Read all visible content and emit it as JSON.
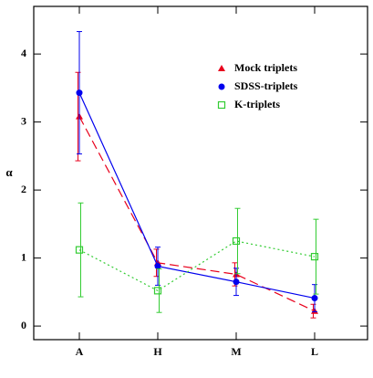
{
  "chart_data": {
    "type": "line",
    "ylabel": "α",
    "categories": [
      "A",
      "H",
      "M",
      "L"
    ],
    "ylim": [
      -0.2,
      4.7
    ],
    "yticks": [
      0,
      1,
      2,
      3,
      4
    ],
    "legend": "upper right",
    "series": [
      {
        "name": "Mock triplets",
        "color": "#e8001c",
        "marker": "triangle",
        "linestyle": "dashed",
        "values": [
          3.08,
          0.93,
          0.76,
          0.22
        ],
        "errors": [
          0.65,
          0.2,
          0.17,
          0.1
        ]
      },
      {
        "name": "SDSS-triplets",
        "color": "#0000ee",
        "marker": "circle",
        "linestyle": "solid",
        "values": [
          3.43,
          0.88,
          0.65,
          0.41
        ],
        "errors": [
          0.9,
          0.28,
          0.2,
          0.2
        ]
      },
      {
        "name": "K-triplets",
        "color": "#33cc33",
        "marker": "square",
        "linestyle": "dotted",
        "values": [
          1.12,
          0.52,
          1.25,
          1.02
        ],
        "errors": [
          0.69,
          0.32,
          0.48,
          0.55
        ]
      }
    ]
  }
}
